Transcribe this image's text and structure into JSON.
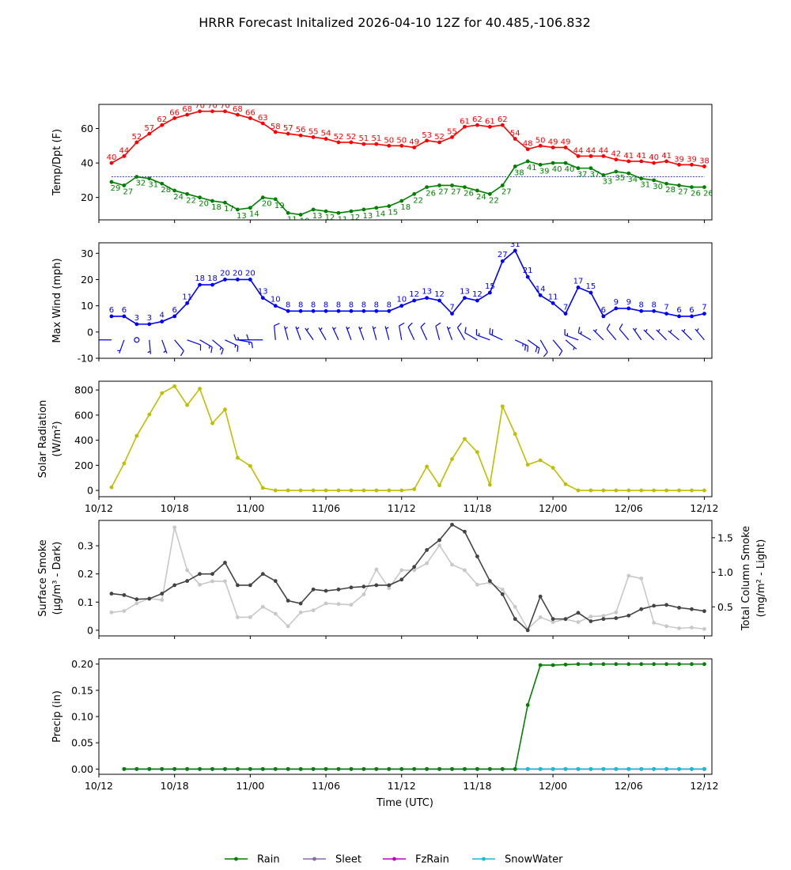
{
  "title": "HRRR Forecast Initalized 2026-04-10 12Z for 40.485,-106.832",
  "xlabel": "Time (UTC)",
  "x_tick_labels": [
    "10/12",
    "10/18",
    "11/00",
    "11/06",
    "11/12",
    "11/18",
    "12/00",
    "12/06",
    "12/12"
  ],
  "legend": [
    {
      "name": "Rain",
      "color": "#008000"
    },
    {
      "name": "Sleet",
      "color": "#8a6aa6"
    },
    {
      "name": "FzRain",
      "color": "#c000c0"
    },
    {
      "name": "SnowWater",
      "color": "#17becf"
    }
  ],
  "chart_data": [
    {
      "type": "line",
      "id": "temp",
      "ylabel": "Temp/Dpt (F)",
      "ylim": [
        7,
        74
      ],
      "yticks": [
        20,
        40,
        60
      ],
      "freezing_line": 32,
      "x_hours": [
        1,
        2,
        3,
        4,
        5,
        6,
        7,
        8,
        9,
        10,
        11,
        12,
        13,
        14,
        15,
        16,
        17,
        18,
        19,
        20,
        21,
        22,
        23,
        24,
        25,
        26,
        27,
        28,
        29,
        30,
        31,
        32,
        33,
        34,
        35,
        36,
        37,
        38,
        39,
        40,
        41,
        42,
        43,
        44,
        45,
        46,
        47,
        48
      ],
      "series": [
        {
          "name": "Temperature",
          "color": "#ff0000",
          "values": [
            40,
            44,
            52,
            57,
            62,
            66,
            68,
            70,
            70,
            70,
            68,
            66,
            63,
            58,
            57,
            56,
            55,
            54,
            52,
            52,
            51,
            51,
            50,
            50,
            49,
            53,
            52,
            55,
            61,
            62,
            61,
            62,
            54,
            48,
            50,
            49,
            49,
            44,
            44,
            44,
            42,
            41,
            41,
            40,
            41,
            39,
            39,
            38
          ]
        },
        {
          "name": "Dewpoint",
          "color": "#008000",
          "values": [
            29,
            27,
            32,
            31,
            28,
            24,
            22,
            20,
            18,
            17,
            13,
            14,
            20,
            19,
            11,
            10,
            13,
            12,
            11,
            12,
            13,
            14,
            15,
            18,
            22,
            26,
            27,
            27,
            26,
            24,
            22,
            27,
            38,
            41,
            39,
            40,
            40,
            37,
            37,
            33,
            35,
            34,
            31,
            30,
            28,
            27,
            26,
            26
          ]
        }
      ]
    },
    {
      "type": "line",
      "id": "wind",
      "ylabel": "Max Wind (mph)",
      "ylim": [
        -10,
        34
      ],
      "yticks": [
        -10,
        0,
        10,
        20,
        30
      ],
      "x_hours": [
        1,
        2,
        3,
        4,
        5,
        6,
        7,
        8,
        9,
        10,
        11,
        12,
        13,
        14,
        15,
        16,
        17,
        18,
        19,
        20,
        21,
        22,
        23,
        24,
        25,
        26,
        27,
        28,
        29,
        30,
        31,
        32,
        33,
        34,
        35,
        36,
        37,
        38,
        39,
        40,
        41,
        42,
        43,
        44,
        45,
        46,
        47,
        48
      ],
      "series": [
        {
          "name": "Max Wind",
          "color": "#0000ff",
          "values": [
            6,
            6,
            3,
            3,
            4,
            6,
            11,
            18,
            18,
            20,
            20,
            20,
            13,
            10,
            8,
            8,
            8,
            8,
            8,
            8,
            8,
            8,
            8,
            10,
            12,
            13,
            12,
            7,
            13,
            12,
            15,
            27,
            31,
            21,
            14,
            11,
            7,
            17,
            15,
            6,
            9,
            9,
            8,
            8,
            7,
            6,
            6,
            7
          ]
        }
      ],
      "barbs_direction_deg": [
        270,
        200,
        200,
        175,
        160,
        140,
        110,
        120,
        130,
        115,
        100,
        270,
        270,
        355,
        345,
        340,
        325,
        330,
        335,
        340,
        340,
        345,
        345,
        350,
        335,
        335,
        345,
        340,
        330,
        300,
        290,
        295,
        115,
        125,
        150,
        140,
        130,
        290,
        300,
        315,
        320,
        320,
        325,
        315,
        315,
        310,
        315,
        320
      ],
      "barbs_speed_kt": [
        8,
        5,
        2,
        3,
        5,
        8,
        10,
        14,
        14,
        15,
        15,
        15,
        10,
        8,
        6,
        6,
        6,
        7,
        7,
        7,
        7,
        7,
        7,
        8,
        10,
        11,
        10,
        6,
        11,
        10,
        13,
        22,
        25,
        18,
        12,
        9,
        6,
        14,
        13,
        5,
        8,
        8,
        7,
        7,
        6,
        5,
        5,
        6
      ]
    },
    {
      "type": "line",
      "id": "solar",
      "ylabel": "Solar Radiation",
      "ylabel2": "(W/m²)",
      "ylim": [
        -50,
        870
      ],
      "yticks": [
        0,
        200,
        400,
        600,
        800
      ],
      "x_hours": [
        1,
        2,
        3,
        4,
        5,
        6,
        7,
        8,
        9,
        10,
        11,
        12,
        13,
        14,
        15,
        16,
        17,
        18,
        19,
        20,
        21,
        22,
        23,
        24,
        25,
        26,
        27,
        28,
        29,
        30,
        31,
        32,
        33,
        34,
        35,
        36,
        37,
        38,
        39,
        40,
        41,
        42,
        43,
        44,
        45,
        46,
        47,
        48
      ],
      "series": [
        {
          "name": "Solar Radiation",
          "color": "#bfbf00",
          "values": [
            25,
            215,
            435,
            605,
            775,
            830,
            680,
            810,
            535,
            645,
            260,
            195,
            20,
            0,
            0,
            0,
            0,
            0,
            0,
            0,
            0,
            0,
            0,
            0,
            10,
            190,
            40,
            250,
            410,
            305,
            45,
            670,
            450,
            205,
            240,
            180,
            50,
            0,
            0,
            0,
            0,
            0,
            0,
            0,
            0,
            0,
            0,
            0
          ]
        }
      ]
    },
    {
      "type": "line",
      "id": "smoke",
      "ylabel": "Surface Smoke",
      "ylabel2": "(μg/m³ - Dark)",
      "ylim": [
        -0.02,
        0.39
      ],
      "yticks": [
        0.0,
        0.1,
        0.2,
        0.3
      ],
      "y2label": "Total Column Smoke",
      "y2label2": "(mg/m² - Light)",
      "y2lim": [
        0.08,
        1.75
      ],
      "y2ticks": [
        0.5,
        1.0,
        1.5
      ],
      "x_hours": [
        1,
        2,
        3,
        4,
        5,
        6,
        7,
        8,
        9,
        10,
        11,
        12,
        13,
        14,
        15,
        16,
        17,
        18,
        19,
        20,
        21,
        22,
        23,
        24,
        25,
        26,
        27,
        28,
        29,
        30,
        31,
        32,
        33,
        34,
        35,
        36,
        37,
        38,
        39,
        40,
        41,
        42,
        43,
        44,
        45,
        46,
        47,
        48
      ],
      "series": [
        {
          "name": "Surface Smoke",
          "color": "#444444",
          "axis": "left",
          "values": [
            0.13,
            0.125,
            0.11,
            0.112,
            0.13,
            0.16,
            0.175,
            0.2,
            0.2,
            0.24,
            0.16,
            0.16,
            0.2,
            0.175,
            0.105,
            0.095,
            0.145,
            0.14,
            0.145,
            0.152,
            0.155,
            0.16,
            0.16,
            0.18,
            0.225,
            0.285,
            0.32,
            0.375,
            0.35,
            0.262,
            0.175,
            0.128,
            0.04,
            0.0,
            0.12,
            0.04,
            0.04,
            0.062,
            0.032,
            0.04,
            0.043,
            0.052,
            0.075,
            0.087,
            0.09,
            0.08,
            0.075,
            0.068
          ]
        },
        {
          "name": "Total Column Smoke",
          "color": "#c8c8c8",
          "axis": "right",
          "values": [
            0.42,
            0.44,
            0.55,
            0.62,
            0.6,
            1.65,
            1.03,
            0.82,
            0.87,
            0.87,
            0.35,
            0.35,
            0.5,
            0.4,
            0.22,
            0.42,
            0.45,
            0.55,
            0.54,
            0.53,
            0.68,
            1.04,
            0.77,
            1.03,
            1.03,
            1.13,
            1.39,
            1.11,
            1.03,
            0.82,
            0.85,
            0.75,
            0.5,
            0.18,
            0.35,
            0.28,
            0.32,
            0.28,
            0.36,
            0.37,
            0.42,
            0.95,
            0.91,
            0.27,
            0.22,
            0.19,
            0.2,
            0.18
          ]
        }
      ]
    },
    {
      "type": "line",
      "id": "precip",
      "ylabel": "Precip (in)",
      "ylim": [
        -0.01,
        0.21
      ],
      "yticks": [
        0.0,
        0.05,
        0.1,
        0.15,
        0.2
      ],
      "ytick_labels": [
        "0.00",
        "0.05",
        "0.10",
        "0.15",
        "0.20"
      ],
      "x_hours": [
        2,
        3,
        4,
        5,
        6,
        7,
        8,
        9,
        10,
        11,
        12,
        13,
        14,
        15,
        16,
        17,
        18,
        19,
        20,
        21,
        22,
        23,
        24,
        25,
        26,
        27,
        28,
        29,
        30,
        31,
        32,
        33,
        34,
        35,
        36,
        37,
        38,
        39,
        40,
        41,
        42,
        43,
        44,
        45,
        46,
        47,
        48
      ],
      "series": [
        {
          "name": "Rain",
          "color": "#008000",
          "values": [
            0,
            0,
            0,
            0,
            0,
            0,
            0,
            0,
            0,
            0,
            0,
            0,
            0,
            0,
            0,
            0,
            0,
            0,
            0,
            0,
            0,
            0,
            0,
            0,
            0,
            0,
            0,
            0,
            0,
            0,
            0,
            0,
            0.122,
            0.198,
            0.198,
            0.199,
            0.2,
            0.2,
            0.2,
            0.2,
            0.2,
            0.2,
            0.2,
            0.2,
            0.2,
            0.2,
            0.2
          ]
        },
        {
          "name": "Sleet",
          "color": "#8a6aa6",
          "values": [
            0,
            0,
            0,
            0,
            0,
            0,
            0,
            0,
            0,
            0,
            0,
            0,
            0,
            0,
            0,
            0,
            0,
            0,
            0,
            0,
            0,
            0,
            0,
            0,
            0,
            0,
            0,
            0,
            0,
            0,
            0,
            0,
            0,
            0,
            0,
            0,
            0,
            0,
            0,
            0,
            0,
            0,
            0,
            0,
            0,
            0,
            0
          ]
        },
        {
          "name": "FzRain",
          "color": "#c000c0",
          "values": [
            0,
            0,
            0,
            0,
            0,
            0,
            0,
            0,
            0,
            0,
            0,
            0,
            0,
            0,
            0,
            0,
            0,
            0,
            0,
            0,
            0,
            0,
            0,
            0,
            0,
            0,
            0,
            0,
            0,
            0,
            0,
            0,
            0,
            0,
            0,
            0,
            0,
            0,
            0,
            0,
            0,
            0,
            0,
            0,
            0,
            0,
            0
          ]
        },
        {
          "name": "SnowWater",
          "color": "#17becf",
          "values": [
            0,
            0,
            0,
            0,
            0,
            0,
            0,
            0,
            0,
            0,
            0,
            0,
            0,
            0,
            0,
            0,
            0,
            0,
            0,
            0,
            0,
            0,
            0,
            0,
            0,
            0,
            0,
            0,
            0,
            0,
            0,
            0,
            0,
            0,
            0,
            0,
            0,
            0,
            0,
            0,
            0,
            0,
            0,
            0,
            0,
            0,
            0
          ]
        }
      ]
    }
  ]
}
